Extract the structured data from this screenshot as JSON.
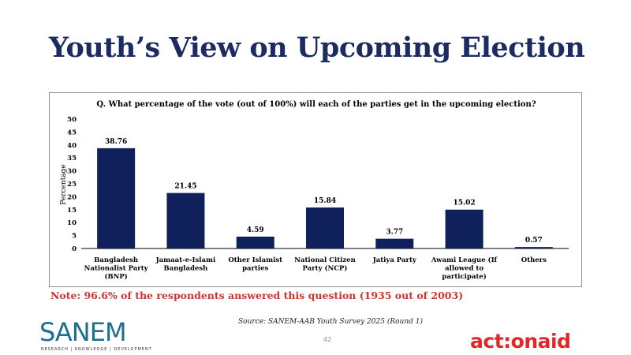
{
  "slide": {
    "title": "Youth’s View on Upcoming Election",
    "note": "Note: 96.6% of the respondents answered this question (1935 out of 2003)",
    "source": "Source: SANEM-AAB Youth Survey 2025 (Round 1)",
    "page_number": "42",
    "logos": {
      "sanem_text": "SANEM",
      "sanem_tagline": "RESEARCH | KNOWLEDGE | DEVELOPMENT",
      "actionaid_text": "act:onaid"
    }
  },
  "colors": {
    "title": "#1c2c63",
    "bar": "#10205a",
    "note": "#c8362e",
    "sanem": "#1f6e8c",
    "actionaid": "#e3262a"
  },
  "chart_data": {
    "type": "bar",
    "title": "Q. What percentage of the vote (out of 100%) will each of the parties get in the upcoming election?",
    "ylabel": "Percentage",
    "xlabel": "",
    "ylim": [
      0,
      50
    ],
    "yticks": [
      0,
      5,
      10,
      15,
      20,
      25,
      30,
      35,
      40,
      45,
      50
    ],
    "categories": [
      "Bangladesh Nationalist Party (BNP)",
      "Jamaat-e-Islami Bangladesh",
      "Other Islamist parties",
      "National Citizen Party (NCP)",
      "Jatiya Party",
      "Awami League (If allowed to participate)",
      "Others"
    ],
    "category_lines": [
      [
        "Bangladesh",
        "Nationalist Party",
        "(BNP)"
      ],
      [
        "Jamaat-e-Islami",
        "Bangladesh"
      ],
      [
        "Other Islamist",
        "parties"
      ],
      [
        "National Citizen",
        "Party (NCP)"
      ],
      [
        "Jatiya Party"
      ],
      [
        "Awami League (If",
        "allowed to",
        "participate)"
      ],
      [
        "Others"
      ]
    ],
    "values": [
      38.76,
      21.45,
      4.59,
      15.84,
      3.77,
      15.02,
      0.57
    ],
    "data_labels": [
      "38.76",
      "21.45",
      "4.59",
      "15.84",
      "3.77",
      "15.02",
      "0.57"
    ],
    "grid": false,
    "legend": "none"
  }
}
